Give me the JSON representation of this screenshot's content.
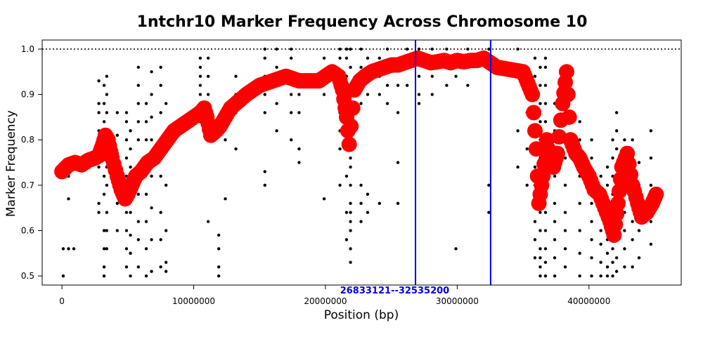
{
  "chart_data": {
    "type": "scatter",
    "title": "1ntchr10 Marker Frequency Across Chromosome 10",
    "xlabel": "Position (bp)",
    "ylabel": "Marker Frequency",
    "xlim": [
      -1500000,
      47000000
    ],
    "ylim": [
      0.48,
      1.02
    ],
    "x_ticks": [
      {
        "value": 0,
        "label": "0"
      },
      {
        "value": 10000000,
        "label": "10000000"
      },
      {
        "value": 20000000,
        "label": "20000000"
      },
      {
        "value": 30000000,
        "label": "30000000"
      },
      {
        "value": 40000000,
        "label": "40000000"
      }
    ],
    "y_ticks": [
      {
        "value": 0.5,
        "label": "0.5"
      },
      {
        "value": 0.6,
        "label": "0.6"
      },
      {
        "value": 0.7,
        "label": "0.7"
      },
      {
        "value": 0.8,
        "label": "0.8"
      },
      {
        "value": 0.9,
        "label": "0.9"
      },
      {
        "value": 1.0,
        "label": "1.0"
      }
    ],
    "reference_line": {
      "y": 1.0,
      "style": "dotted",
      "color": "#000000"
    },
    "region": {
      "start": 26833121,
      "end": 32535200,
      "label": "26833121--32535200",
      "color": "#0000ee"
    },
    "series": [
      {
        "color": "#000000",
        "marker": "dot",
        "columns": [
          {
            "x": 100000,
            "y": [
              0.5,
              0.56,
              0.72,
              0.74,
              0.75
            ]
          },
          {
            "x": 500000,
            "y": [
              0.56,
              0.67,
              0.72,
              0.74
            ]
          },
          {
            "x": 900000,
            "y": [
              0.56,
              0.75
            ]
          },
          {
            "x": 2800000,
            "y": [
              0.64,
              0.66,
              0.74,
              0.82,
              0.86,
              0.88,
              0.93
            ]
          },
          {
            "x": 3200000,
            "y": [
              0.5,
              0.52,
              0.56,
              0.6,
              0.68,
              0.72,
              0.76,
              0.8,
              0.84,
              0.88,
              0.92
            ]
          },
          {
            "x": 3400000,
            "y": [
              0.56,
              0.6,
              0.64,
              0.7,
              0.74,
              0.78,
              0.82,
              0.86,
              0.9,
              0.94
            ]
          },
          {
            "x": 4200000,
            "y": [
              0.6,
              0.66,
              0.72,
              0.77,
              0.81,
              0.86
            ]
          },
          {
            "x": 4900000,
            "y": [
              0.52,
              0.56,
              0.6,
              0.64,
              0.68,
              0.72,
              0.76,
              0.8,
              0.84,
              0.86
            ]
          },
          {
            "x": 5200000,
            "y": [
              0.5,
              0.55,
              0.59,
              0.64,
              0.7,
              0.74,
              0.78,
              0.82
            ]
          },
          {
            "x": 5800000,
            "y": [
              0.52,
              0.58,
              0.62,
              0.68,
              0.72,
              0.8,
              0.84,
              0.88,
              0.92,
              0.96
            ]
          },
          {
            "x": 6400000,
            "y": [
              0.5,
              0.56,
              0.62,
              0.68,
              0.74,
              0.8,
              0.84,
              0.88
            ]
          },
          {
            "x": 6800000,
            "y": [
              0.51,
              0.58,
              0.65,
              0.72,
              0.8,
              0.85,
              0.9,
              0.95
            ]
          },
          {
            "x": 7500000,
            "y": [
              0.52,
              0.58,
              0.64,
              0.72,
              0.8,
              0.86,
              0.92,
              0.96
            ]
          },
          {
            "x": 7900000,
            "y": [
              0.51,
              0.53,
              0.6,
              0.7,
              0.8,
              0.88
            ]
          },
          {
            "x": 10500000,
            "y": [
              0.84,
              0.88,
              0.9,
              0.92,
              0.94,
              0.96,
              0.98
            ]
          },
          {
            "x": 11100000,
            "y": [
              0.62,
              0.8,
              0.82,
              0.86,
              0.9,
              0.94,
              0.98
            ]
          },
          {
            "x": 11900000,
            "y": [
              0.5,
              0.52,
              0.56,
              0.59
            ]
          },
          {
            "x": 12400000,
            "y": [
              0.67,
              0.8,
              0.84
            ]
          },
          {
            "x": 13200000,
            "y": [
              0.78,
              0.86,
              0.9,
              0.94
            ]
          },
          {
            "x": 15400000,
            "y": [
              0.7,
              0.73,
              0.86,
              0.9,
              0.94,
              0.98,
              1.0
            ]
          },
          {
            "x": 16300000,
            "y": [
              0.82,
              0.88,
              0.92,
              0.96,
              1.0
            ]
          },
          {
            "x": 17400000,
            "y": [
              0.8,
              0.86,
              0.9,
              0.94,
              0.98,
              1.0
            ]
          },
          {
            "x": 18000000,
            "y": [
              0.75,
              0.78,
              0.86,
              0.9,
              0.94
            ]
          },
          {
            "x": 19900000,
            "y": [
              0.67,
              0.9,
              0.94,
              0.98
            ]
          },
          {
            "x": 21100000,
            "y": [
              0.7,
              0.78,
              0.82,
              0.86,
              0.9,
              0.94,
              0.98,
              1.0
            ]
          },
          {
            "x": 21600000,
            "y": [
              0.58,
              0.64,
              0.72,
              0.8,
              0.86,
              0.9,
              0.94,
              0.98,
              1.0
            ]
          },
          {
            "x": 21900000,
            "y": [
              0.53,
              0.56,
              0.6,
              0.62,
              0.64,
              0.66,
              0.7,
              0.74,
              0.76,
              0.8,
              0.86,
              0.9,
              0.96,
              1.0
            ]
          },
          {
            "x": 22700000,
            "y": [
              0.62,
              0.66,
              0.7,
              0.88,
              0.92,
              0.96,
              1.0
            ]
          },
          {
            "x": 23200000,
            "y": [
              0.64,
              0.68,
              0.9,
              0.94,
              0.98
            ]
          },
          {
            "x": 24100000,
            "y": [
              0.66,
              0.9,
              0.94,
              0.98
            ]
          },
          {
            "x": 24700000,
            "y": [
              0.88,
              0.92,
              0.96,
              1.0
            ]
          },
          {
            "x": 25500000,
            "y": [
              0.66,
              0.75,
              0.86,
              0.92,
              0.96
            ]
          },
          {
            "x": 26200000,
            "y": [
              0.92,
              0.96,
              1.0
            ]
          },
          {
            "x": 27100000,
            "y": [
              0.88,
              0.9,
              0.94,
              0.98,
              1.0
            ]
          },
          {
            "x": 28100000,
            "y": [
              0.9,
              0.94,
              0.98,
              1.0
            ]
          },
          {
            "x": 29200000,
            "y": [
              0.92,
              0.96,
              1.0
            ]
          },
          {
            "x": 29900000,
            "y": [
              0.56,
              0.94,
              0.98
            ]
          },
          {
            "x": 30800000,
            "y": [
              0.92,
              0.96,
              1.0
            ]
          },
          {
            "x": 32400000,
            "y": [
              0.64,
              0.7,
              0.96,
              1.0
            ]
          },
          {
            "x": 34600000,
            "y": [
              0.74,
              0.82,
              1.0
            ]
          },
          {
            "x": 35300000,
            "y": [
              0.7,
              0.78,
              0.86,
              0.9
            ]
          },
          {
            "x": 35900000,
            "y": [
              0.54,
              0.58,
              0.62,
              0.66,
              0.7,
              0.74,
              0.78,
              0.82,
              0.86,
              0.9,
              0.94,
              0.98
            ]
          },
          {
            "x": 36300000,
            "y": [
              0.5,
              0.52,
              0.54,
              0.56,
              0.6,
              0.64,
              0.68,
              0.72,
              0.76,
              0.8,
              0.84,
              0.88,
              0.92,
              0.96
            ]
          },
          {
            "x": 36700000,
            "y": [
              0.5,
              0.53,
              0.56,
              0.6,
              0.64,
              0.68,
              0.72,
              0.76,
              0.8,
              0.84,
              0.88,
              0.92,
              0.96,
              0.98
            ]
          },
          {
            "x": 37400000,
            "y": [
              0.5,
              0.54,
              0.58,
              0.62,
              0.66,
              0.72,
              0.76,
              0.82,
              0.88
            ]
          },
          {
            "x": 38200000,
            "y": [
              0.52,
              0.56,
              0.6,
              0.64,
              0.7,
              0.76,
              0.84,
              0.88,
              0.92,
              0.96
            ]
          },
          {
            "x": 39300000,
            "y": [
              0.5,
              0.55,
              0.6,
              0.66,
              0.72,
              0.8,
              0.84
            ]
          },
          {
            "x": 40200000,
            "y": [
              0.5,
              0.54,
              0.58,
              0.62,
              0.66,
              0.7,
              0.76,
              0.8
            ]
          },
          {
            "x": 40900000,
            "y": [
              0.5,
              0.53,
              0.57,
              0.6,
              0.64,
              0.68,
              0.72
            ]
          },
          {
            "x": 41400000,
            "y": [
              0.5,
              0.52,
              0.55,
              0.58,
              0.62,
              0.66,
              0.7,
              0.74
            ]
          },
          {
            "x": 41800000,
            "y": [
              0.5,
              0.53,
              0.56,
              0.6,
              0.64,
              0.68,
              0.72,
              0.76,
              0.8
            ]
          },
          {
            "x": 42100000,
            "y": [
              0.51,
              0.54,
              0.58,
              0.62,
              0.66,
              0.7,
              0.74,
              0.78,
              0.82,
              0.86
            ]
          },
          {
            "x": 42700000,
            "y": [
              0.52,
              0.56,
              0.6,
              0.64,
              0.68,
              0.72,
              0.76,
              0.8
            ]
          },
          {
            "x": 43300000,
            "y": [
              0.52,
              0.58,
              0.62,
              0.68,
              0.72,
              0.76,
              0.8
            ]
          },
          {
            "x": 43800000,
            "y": [
              0.54,
              0.6,
              0.65,
              0.7,
              0.75
            ]
          },
          {
            "x": 44700000,
            "y": [
              0.57,
              0.62,
              0.7,
              0.76,
              0.82
            ]
          }
        ]
      },
      {
        "color": "#ff0000",
        "marker": "large-point",
        "x": [
          0,
          500000,
          1000000,
          1500000,
          2000000,
          2500000,
          2800000,
          3100000,
          3300000,
          3500000,
          3800000,
          4200000,
          4500000,
          4800000,
          5000000,
          5300000,
          5600000,
          6000000,
          6500000,
          7000000,
          7500000,
          8000000,
          8500000,
          9000000,
          9500000,
          10000000,
          10500000,
          10800000,
          11000000,
          11300000,
          11700000,
          12000000,
          12400000,
          12800000,
          13200000,
          13600000,
          14000000,
          14500000,
          15000000,
          15500000,
          16000000,
          16500000,
          17000000,
          17500000,
          18000000,
          19500000,
          20000000,
          20500000,
          21000000,
          21300000,
          21600000,
          21800000,
          22200000,
          22600000,
          23000000,
          23500000,
          24000000,
          24500000,
          25000000,
          25500000,
          26000000,
          26500000,
          27000000,
          27500000,
          28000000,
          28500000,
          29000000,
          29500000,
          30000000,
          30500000,
          31000000,
          31500000,
          32000000,
          32500000,
          33000000,
          34000000,
          35000000,
          35700000,
          36000000,
          36200000,
          36500000,
          36800000,
          37000000,
          37300000,
          37600000,
          38000000,
          38300000,
          38600000,
          39000000,
          39300000,
          39600000,
          40000000,
          40400000,
          40800000,
          41200000,
          41600000,
          41900000,
          42200000,
          42500000,
          42900000,
          43300000,
          43700000,
          44000000,
          44400000,
          44800000,
          45100000
        ],
        "y": [
          0.73,
          0.745,
          0.75,
          0.745,
          0.755,
          0.76,
          0.765,
          0.79,
          0.81,
          0.8,
          0.76,
          0.72,
          0.69,
          0.67,
          0.68,
          0.7,
          0.72,
          0.73,
          0.75,
          0.76,
          0.78,
          0.8,
          0.82,
          0.83,
          0.84,
          0.85,
          0.86,
          0.87,
          0.85,
          0.81,
          0.82,
          0.83,
          0.85,
          0.87,
          0.88,
          0.89,
          0.9,
          0.91,
          0.92,
          0.925,
          0.93,
          0.935,
          0.94,
          0.935,
          0.93,
          0.93,
          0.94,
          0.95,
          0.94,
          0.91,
          0.85,
          0.79,
          0.91,
          0.93,
          0.94,
          0.95,
          0.955,
          0.96,
          0.965,
          0.965,
          0.97,
          0.975,
          0.98,
          0.975,
          0.97,
          0.972,
          0.975,
          0.97,
          0.975,
          0.972,
          0.975,
          0.975,
          0.98,
          0.97,
          0.96,
          0.955,
          0.95,
          0.9,
          0.78,
          0.66,
          0.72,
          0.8,
          0.76,
          0.74,
          0.77,
          0.88,
          0.95,
          0.8,
          0.77,
          0.76,
          0.74,
          0.72,
          0.69,
          0.68,
          0.65,
          0.62,
          0.59,
          0.66,
          0.74,
          0.77,
          0.7,
          0.66,
          0.63,
          0.64,
          0.66,
          0.68
        ]
      }
    ]
  }
}
